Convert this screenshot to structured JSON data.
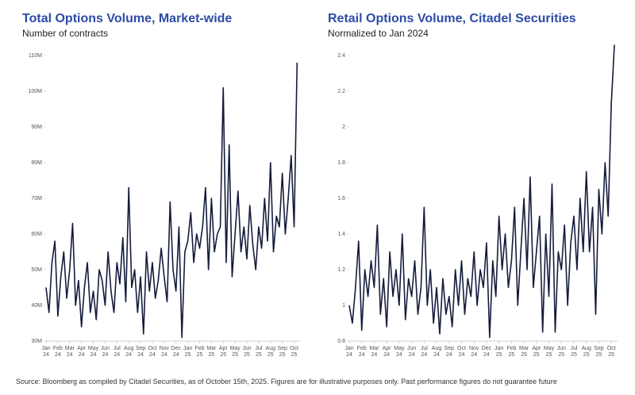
{
  "chart_data": [
    {
      "type": "line",
      "title": "Total Options Volume, Market-wide",
      "subtitle": "Number of contracts",
      "x": [
        0,
        0.25,
        0.5,
        0.75,
        1,
        1.25,
        1.5,
        1.75,
        2,
        2.25,
        2.5,
        2.75,
        3,
        3.25,
        3.5,
        3.75,
        4,
        4.25,
        4.5,
        4.75,
        5,
        5.25,
        5.5,
        5.75,
        6,
        6.25,
        6.5,
        6.75,
        7,
        7.25,
        7.5,
        7.75,
        8,
        8.25,
        8.5,
        8.75,
        9,
        9.25,
        9.5,
        9.75,
        10,
        10.25,
        10.5,
        10.75,
        11,
        11.25,
        11.5,
        11.75,
        12,
        12.25,
        12.5,
        12.75,
        13,
        13.25,
        13.5,
        13.75,
        14,
        14.25,
        14.5,
        14.75,
        15,
        15.25,
        15.5,
        15.75,
        16,
        16.25,
        16.5,
        16.75,
        17,
        17.25,
        17.5,
        17.75,
        18,
        18.25,
        18.5,
        18.75,
        19,
        19.25,
        19.5,
        19.75,
        20,
        20.25,
        20.5,
        20.75,
        21,
        21.25
      ],
      "series": [
        {
          "color": "#141c3c",
          "values": [
            45000000,
            38000000,
            52000000,
            58000000,
            37000000,
            48000000,
            55000000,
            42000000,
            50000000,
            63000000,
            40000000,
            47000000,
            34000000,
            45000000,
            52000000,
            38000000,
            44000000,
            36000000,
            50000000,
            47000000,
            40000000,
            55000000,
            44000000,
            38000000,
            52000000,
            46000000,
            59000000,
            41000000,
            73000000,
            45000000,
            50000000,
            38000000,
            48000000,
            32000000,
            55000000,
            44000000,
            52000000,
            42000000,
            47000000,
            56000000,
            48000000,
            41000000,
            69000000,
            50000000,
            44000000,
            62000000,
            31000000,
            55000000,
            58000000,
            66000000,
            52000000,
            60000000,
            56000000,
            62000000,
            73000000,
            50000000,
            70000000,
            55000000,
            60000000,
            62000000,
            101000000,
            52000000,
            85000000,
            48000000,
            60000000,
            72000000,
            55000000,
            62000000,
            53000000,
            68000000,
            57000000,
            50000000,
            62000000,
            56000000,
            70000000,
            58000000,
            80000000,
            55000000,
            65000000,
            62000000,
            77000000,
            60000000,
            70000000,
            82000000,
            62000000,
            108000000
          ]
        }
      ],
      "xlim": [
        0,
        21.5
      ],
      "xticks": [
        {
          "value": 0,
          "label": "Jan 24"
        },
        {
          "value": 1,
          "label": "Feb 24"
        },
        {
          "value": 2,
          "label": "Mar 24"
        },
        {
          "value": 3,
          "label": "Apr 24"
        },
        {
          "value": 4,
          "label": "May 24"
        },
        {
          "value": 5,
          "label": "Jun 24"
        },
        {
          "value": 6,
          "label": "Jul 24"
        },
        {
          "value": 7,
          "label": "Aug 24"
        },
        {
          "value": 8,
          "label": "Sep 24"
        },
        {
          "value": 9,
          "label": "Oct 24"
        },
        {
          "value": 10,
          "label": "Nov 24"
        },
        {
          "value": 11,
          "label": "Dec 24"
        },
        {
          "value": 12,
          "label": "Jan 25"
        },
        {
          "value": 13,
          "label": "Feb 25"
        },
        {
          "value": 14,
          "label": "Mar 25"
        },
        {
          "value": 15,
          "label": "Apr 25"
        },
        {
          "value": 16,
          "label": "May 25"
        },
        {
          "value": 17,
          "label": "Jun 25"
        },
        {
          "value": 18,
          "label": "Jul 25"
        },
        {
          "value": 19,
          "label": "Aug 25"
        },
        {
          "value": 20,
          "label": "Sep 25"
        },
        {
          "value": 21,
          "label": "Oct 25"
        }
      ],
      "ylim": [
        30000000,
        110000000
      ],
      "yticks": [
        {
          "value": 30000000,
          "label": "30M"
        },
        {
          "value": 40000000,
          "label": "40M"
        },
        {
          "value": 50000000,
          "label": "50M"
        },
        {
          "value": 60000000,
          "label": "60M"
        },
        {
          "value": 70000000,
          "label": "70M"
        },
        {
          "value": 80000000,
          "label": "80M"
        },
        {
          "value": 90000000,
          "label": "90M"
        },
        {
          "value": 100000000,
          "label": "100M"
        },
        {
          "value": 110000000,
          "label": "110M"
        }
      ]
    },
    {
      "type": "line",
      "title": "Retail Options Volume, Citadel Securities",
      "subtitle": "Normalized to Jan 2024",
      "x": [
        0,
        0.25,
        0.5,
        0.75,
        1,
        1.25,
        1.5,
        1.75,
        2,
        2.25,
        2.5,
        2.75,
        3,
        3.25,
        3.5,
        3.75,
        4,
        4.25,
        4.5,
        4.75,
        5,
        5.25,
        5.5,
        5.75,
        6,
        6.25,
        6.5,
        6.75,
        7,
        7.25,
        7.5,
        7.75,
        8,
        8.25,
        8.5,
        8.75,
        9,
        9.25,
        9.5,
        9.75,
        10,
        10.25,
        10.5,
        10.75,
        11,
        11.25,
        11.5,
        11.75,
        12,
        12.25,
        12.5,
        12.75,
        13,
        13.25,
        13.5,
        13.75,
        14,
        14.25,
        14.5,
        14.75,
        15,
        15.25,
        15.5,
        15.75,
        16,
        16.25,
        16.5,
        16.75,
        17,
        17.25,
        17.5,
        17.75,
        18,
        18.25,
        18.5,
        18.75,
        19,
        19.25,
        19.5,
        19.75,
        20,
        20.25,
        20.5,
        20.75,
        21,
        21.25
      ],
      "series": [
        {
          "color": "#141c3c",
          "values": [
            1.0,
            0.9,
            1.1,
            1.36,
            0.86,
            1.2,
            1.05,
            1.25,
            1.1,
            1.45,
            0.95,
            1.15,
            0.88,
            1.3,
            1.05,
            1.2,
            1.0,
            1.4,
            0.92,
            1.15,
            1.05,
            1.25,
            0.95,
            1.1,
            1.55,
            1.0,
            1.2,
            0.9,
            1.1,
            0.84,
            1.15,
            0.95,
            1.05,
            0.88,
            1.2,
            1.0,
            1.25,
            0.95,
            1.15,
            1.05,
            1.3,
            1.0,
            1.2,
            1.1,
            1.35,
            0.82,
            1.25,
            1.05,
            1.5,
            1.2,
            1.4,
            1.1,
            1.25,
            1.55,
            1.0,
            1.3,
            1.6,
            1.2,
            1.72,
            1.1,
            1.3,
            1.5,
            0.85,
            1.4,
            1.05,
            1.68,
            0.85,
            1.3,
            1.2,
            1.45,
            1.0,
            1.35,
            1.5,
            1.2,
            1.6,
            1.3,
            1.75,
            1.3,
            1.55,
            0.95,
            1.65,
            1.4,
            1.8,
            1.5,
            2.13,
            2.46
          ]
        }
      ],
      "xlim": [
        0,
        21.5
      ],
      "xticks": [
        {
          "value": 0,
          "label": "Jan 24"
        },
        {
          "value": 1,
          "label": "Feb 24"
        },
        {
          "value": 2,
          "label": "Mar 24"
        },
        {
          "value": 3,
          "label": "Apr 24"
        },
        {
          "value": 4,
          "label": "May 24"
        },
        {
          "value": 5,
          "label": "Jun 24"
        },
        {
          "value": 6,
          "label": "Jul 24"
        },
        {
          "value": 7,
          "label": "Aug 24"
        },
        {
          "value": 8,
          "label": "Sep 24"
        },
        {
          "value": 9,
          "label": "Oct 24"
        },
        {
          "value": 10,
          "label": "Nov 24"
        },
        {
          "value": 11,
          "label": "Dec 24"
        },
        {
          "value": 12,
          "label": "Jan 25"
        },
        {
          "value": 13,
          "label": "Feb 25"
        },
        {
          "value": 14,
          "label": "Mar 25"
        },
        {
          "value": 15,
          "label": "Apr 25"
        },
        {
          "value": 16,
          "label": "May 25"
        },
        {
          "value": 17,
          "label": "Jun 25"
        },
        {
          "value": 18,
          "label": "Jul 25"
        },
        {
          "value": 19,
          "label": "Aug 25"
        },
        {
          "value": 20,
          "label": "Sep 25"
        },
        {
          "value": 21,
          "label": "Oct 25"
        }
      ],
      "ylim": [
        0.8,
        2.4
      ],
      "yticks": [
        0.8,
        1,
        1.2,
        1.4,
        1.6,
        1.8,
        2,
        2.2,
        2.4
      ]
    }
  ],
  "footer": "Source: Bloomberg as compiled by Citadel Securities, as of October 15th, 2025. Figures are for illustrative purposes only. Past performance figures do not guarantee future"
}
